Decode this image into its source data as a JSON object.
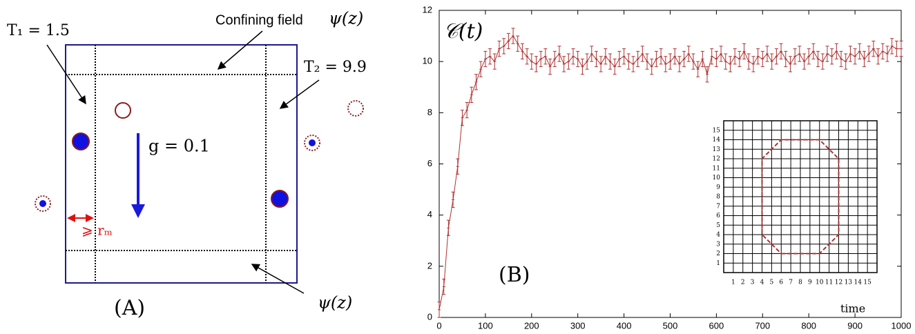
{
  "diagram": {
    "t1": "T₁ = 1.5",
    "confining": "Confining field",
    "psi_top": "ψ(z)",
    "t2": "T₂ = 9.9",
    "g": "g = 0.1",
    "rm": "⩾ rₘ",
    "panel": "(A)",
    "psi_bottom": "ψ(z)"
  },
  "chart_data": [
    {
      "type": "errorbar",
      "ylabel": "𝒞(t)",
      "xlabel": "time",
      "annotation": "(B)",
      "x": [
        0,
        10,
        20,
        30,
        40,
        50,
        60,
        70,
        80,
        90,
        100,
        110,
        120,
        130,
        140,
        150,
        160,
        170,
        180,
        190,
        200,
        210,
        220,
        230,
        240,
        250,
        260,
        270,
        280,
        290,
        300,
        310,
        320,
        330,
        340,
        350,
        360,
        370,
        380,
        390,
        400,
        410,
        420,
        430,
        440,
        450,
        460,
        470,
        480,
        490,
        500,
        510,
        520,
        530,
        540,
        550,
        560,
        570,
        580,
        590,
        600,
        610,
        620,
        630,
        640,
        650,
        660,
        670,
        680,
        690,
        700,
        710,
        720,
        730,
        740,
        750,
        760,
        770,
        780,
        790,
        800,
        810,
        820,
        830,
        840,
        850,
        860,
        870,
        880,
        890,
        900,
        910,
        920,
        930,
        940,
        950,
        960,
        970,
        980,
        990,
        1000
      ],
      "series": [
        {
          "color": "#b03030",
          "error": 0.3,
          "values": [
            0.3,
            1.2,
            3.5,
            4.6,
            5.9,
            7.8,
            8.1,
            8.7,
            9.2,
            9.7,
            10.1,
            10.2,
            10.0,
            10.5,
            10.6,
            10.8,
            11.0,
            10.7,
            10.4,
            10.2,
            10.0,
            9.9,
            10.1,
            10.2,
            9.8,
            10.1,
            10.3,
            9.9,
            10.0,
            10.2,
            10.1,
            9.8,
            10.0,
            10.3,
            10.1,
            9.9,
            10.2,
            10.0,
            9.8,
            10.1,
            10.2,
            10.0,
            9.9,
            10.1,
            10.3,
            10.0,
            9.8,
            10.1,
            10.2,
            9.9,
            10.0,
            10.2,
            9.9,
            10.1,
            10.3,
            10.0,
            9.7,
            10.1,
            9.5,
            10.2,
            10.1,
            10.3,
            10.0,
            9.9,
            10.2,
            10.1,
            10.4,
            10.0,
            9.9,
            10.2,
            10.1,
            10.3,
            10.0,
            10.2,
            10.4,
            10.1,
            9.9,
            10.2,
            10.3,
            10.0,
            10.2,
            10.4,
            10.1,
            10.0,
            10.3,
            10.2,
            10.4,
            10.1,
            10.0,
            10.3,
            10.2,
            10.4,
            10.1,
            10.3,
            10.5,
            10.2,
            10.4,
            10.3,
            10.6,
            10.5,
            10.5
          ]
        }
      ],
      "xlim": [
        0,
        1000
      ],
      "xticks": [
        0,
        100,
        200,
        300,
        400,
        500,
        600,
        700,
        800,
        900,
        1000
      ],
      "ylim": [
        0,
        12
      ],
      "yticks": [
        0,
        2,
        4,
        6,
        8,
        10,
        12
      ]
    },
    {
      "type": "line",
      "grid": true,
      "series": [
        {
          "color": "#b03030",
          "x": [
            6,
            10,
            12,
            12,
            10,
            6,
            4,
            4,
            6
          ],
          "values": [
            2,
            2,
            4,
            12,
            14,
            14,
            12,
            4,
            2
          ]
        }
      ],
      "xlim": [
        0,
        16
      ],
      "xticks": [
        1,
        2,
        3,
        4,
        5,
        6,
        7,
        8,
        9,
        10,
        11,
        12,
        13,
        14,
        15
      ],
      "ylim": [
        0,
        16
      ],
      "yticks": [
        1,
        2,
        3,
        4,
        5,
        6,
        7,
        8,
        9,
        10,
        11,
        12,
        13,
        14,
        15
      ]
    }
  ]
}
